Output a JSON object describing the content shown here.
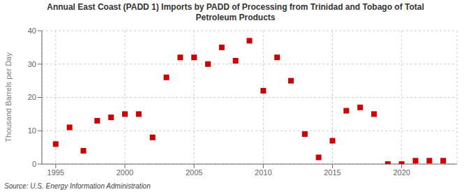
{
  "chart_data": {
    "type": "scatter",
    "title": "Annual East Coast (PADD 1) Imports by PADD of Processing from Trinidad and Tobago of Total\nPetroleum Products",
    "y_label": "Thousand Barrels per Day",
    "annotations": [
      "Source: U.S. Energy Information Administration"
    ],
    "x": [
      1995,
      1996,
      1997,
      1998,
      1999,
      2000,
      2001,
      2002,
      2003,
      2004,
      2005,
      2006,
      2007,
      2008,
      2009,
      2010,
      2011,
      2012,
      2013,
      2014,
      2015,
      2016,
      2017,
      2018,
      2019,
      2020,
      2021,
      2022,
      2023
    ],
    "values": [
      6,
      11,
      4,
      13,
      14,
      15,
      15,
      8,
      26,
      32,
      32,
      30,
      35,
      31,
      37,
      22,
      32,
      25,
      9,
      2,
      7,
      16,
      17,
      15,
      0,
      0,
      1,
      1,
      1
    ],
    "color": "#cc0000",
    "marker": "square",
    "xlim": [
      1994,
      2024
    ],
    "ylim": [
      0,
      40
    ],
    "xticks": [
      1995,
      2000,
      2005,
      2010,
      2015,
      2020
    ],
    "yticks": [
      0,
      10,
      20,
      30,
      40
    ],
    "grid": true
  }
}
